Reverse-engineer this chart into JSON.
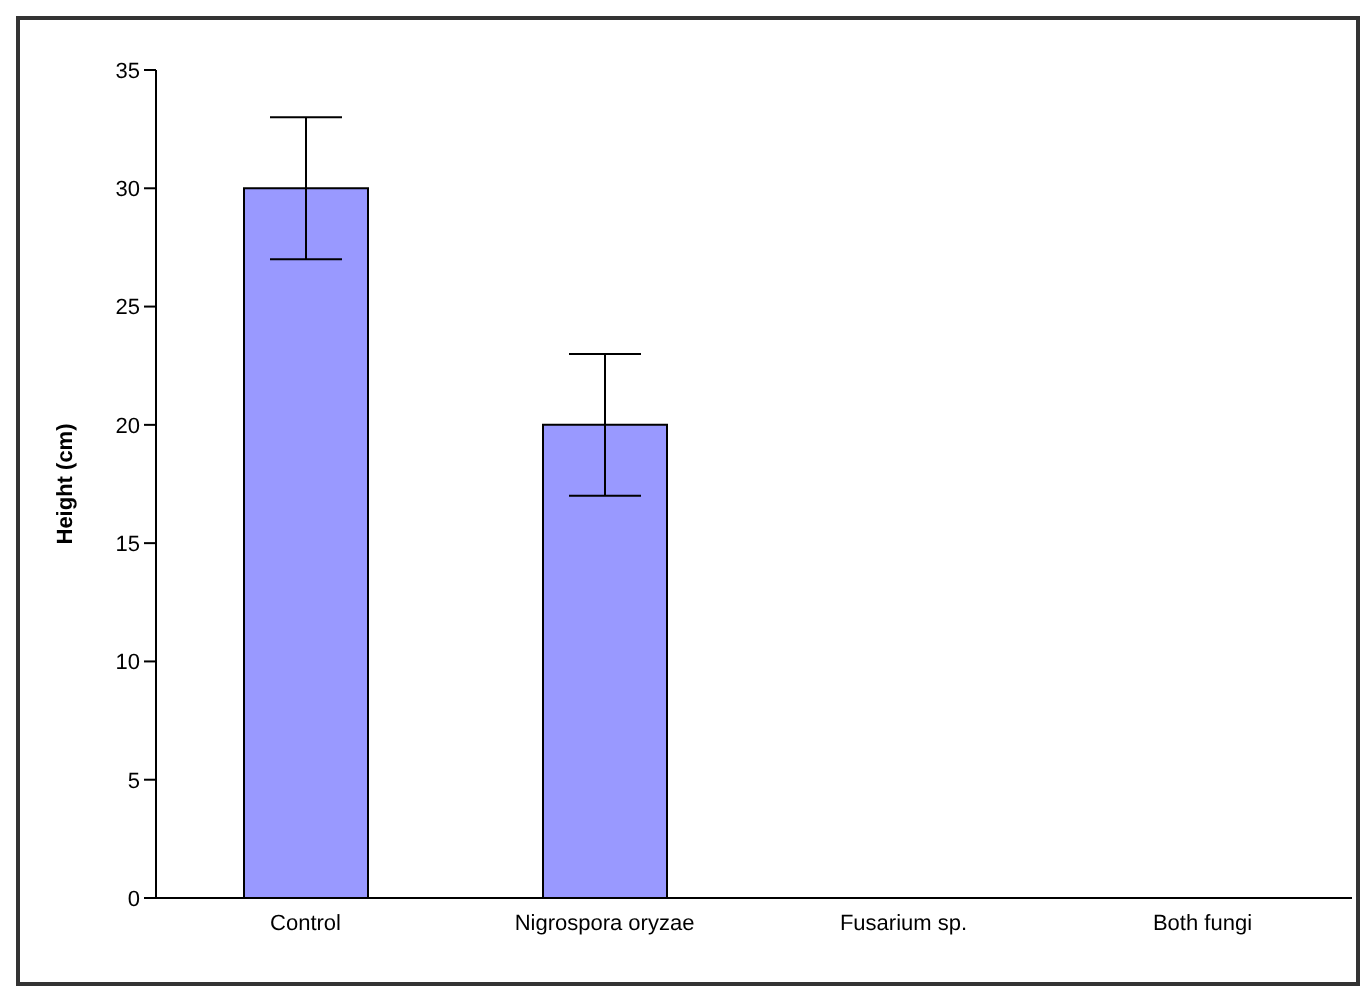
{
  "chart_data": {
    "type": "bar",
    "ylabel": "Height (cm)",
    "categories": [
      "Control",
      "Nigrospora oryzae",
      "Fusarium sp.",
      "Both fungi"
    ],
    "values": [
      30,
      20,
      0,
      0
    ],
    "errors": [
      3,
      3,
      0,
      null
    ],
    "color": "#9999ff",
    "ylim": [
      0,
      35
    ],
    "yticks": [
      0,
      5,
      10,
      15,
      20,
      25,
      30,
      35
    ],
    "grid": false,
    "legend": false
  }
}
